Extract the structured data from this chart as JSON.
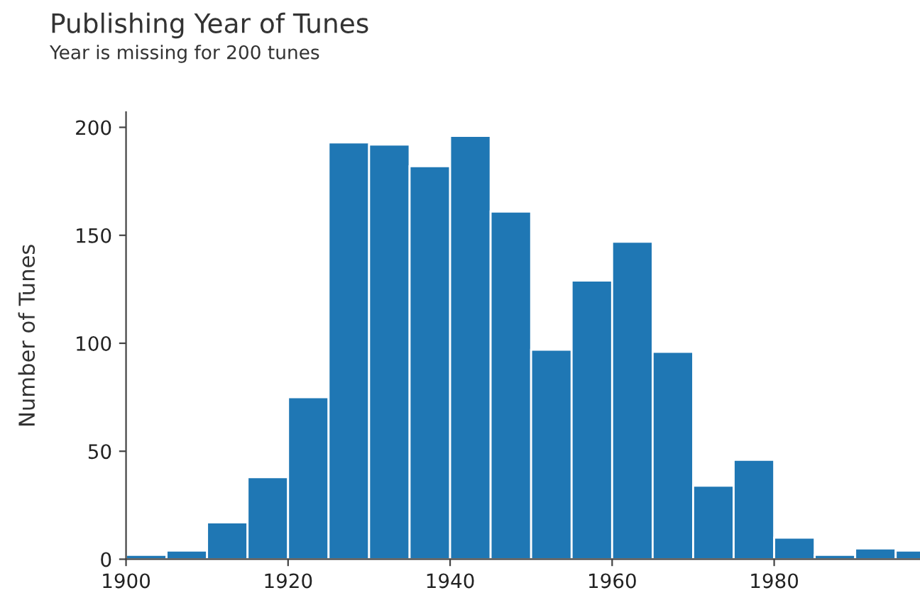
{
  "chart_data": {
    "type": "histogram",
    "title": "Publishing Year of Tunes",
    "subtitle": "Year is missing for 200 tunes",
    "ylabel": "Number of Tunes",
    "bins": [
      1900,
      1905,
      1910,
      1915,
      1920,
      1925,
      1930,
      1935,
      1940,
      1945,
      1950,
      1955,
      1960,
      1965,
      1970,
      1975,
      1980,
      1985,
      1990,
      1995,
      2000
    ],
    "values": [
      2,
      4,
      17,
      38,
      75,
      193,
      192,
      182,
      196,
      161,
      97,
      129,
      147,
      96,
      34,
      46,
      10,
      2,
      5,
      4
    ],
    "color": "#1f77b4",
    "xlim": [
      1900,
      1998
    ],
    "xticks": [
      1900,
      1920,
      1940,
      1960,
      1980
    ],
    "ylim": [
      0,
      207
    ],
    "yticks": [
      0,
      50,
      100,
      150,
      200
    ],
    "grid": false
  }
}
